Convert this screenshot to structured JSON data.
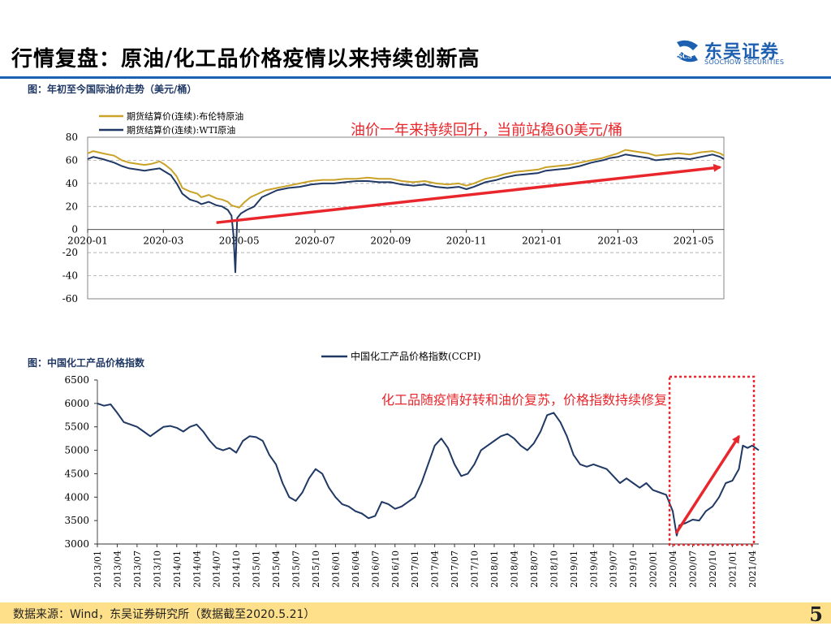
{
  "page": {
    "title": "行情复盘：原油/化工品价格疫情以来持续创新高",
    "logo_cn": "东吴证券",
    "logo_en": "SOOCHOW SECURITIES",
    "brand_color": "#1d5fb0",
    "footer_source": "数据来源：Wind，东吴证券研究所（数据截至2020.5.21）",
    "page_number": "5"
  },
  "chart_data": [
    {
      "type": "line",
      "heading": "图：年初至今国际油价走势（美元/桶）",
      "ylim": [
        -60,
        80
      ],
      "yticks": [
        80,
        60,
        40,
        20,
        0,
        -20,
        -40,
        -60
      ],
      "x_range": [
        "2020-01",
        "2021-05"
      ],
      "xticks": [
        "2020-01",
        "2020-03",
        "2020-05",
        "2020-07",
        "2020-09",
        "2020-11",
        "2021-01",
        "2021-03",
        "2021-05"
      ],
      "grid": true,
      "legend_position": "top-left",
      "annotation": "油价一年来持续回升，当前站稳60美元/桶",
      "annotation_color": "#e8262b",
      "trend_arrow": {
        "from": [
          3.4,
          6
        ],
        "to": [
          16.7,
          54
        ]
      },
      "series": [
        {
          "name": "期货结算价(连续):布伦特原油",
          "color": "#c9a227",
          "points": [
            [
              0,
              66
            ],
            [
              0.15,
              68
            ],
            [
              0.4,
              66
            ],
            [
              0.7,
              64
            ],
            [
              0.9,
              60
            ],
            [
              1.1,
              58
            ],
            [
              1.3,
              57
            ],
            [
              1.5,
              56
            ],
            [
              1.7,
              57
            ],
            [
              1.9,
              59
            ],
            [
              2.05,
              56
            ],
            [
              2.2,
              52
            ],
            [
              2.35,
              46
            ],
            [
              2.5,
              36
            ],
            [
              2.7,
              33
            ],
            [
              2.9,
              31
            ],
            [
              3.0,
              28
            ],
            [
              3.2,
              30
            ],
            [
              3.4,
              27
            ],
            [
              3.55,
              26
            ],
            [
              3.7,
              24
            ],
            [
              3.8,
              21
            ],
            [
              3.9,
              20
            ],
            [
              4.0,
              19
            ],
            [
              4.15,
              24
            ],
            [
              4.3,
              28
            ],
            [
              4.5,
              31
            ],
            [
              4.7,
              34
            ],
            [
              5.0,
              36
            ],
            [
              5.3,
              38
            ],
            [
              5.6,
              40
            ],
            [
              5.9,
              42
            ],
            [
              6.2,
              43
            ],
            [
              6.5,
              43
            ],
            [
              6.8,
              44
            ],
            [
              7.1,
              44
            ],
            [
              7.4,
              45
            ],
            [
              7.7,
              44
            ],
            [
              8.0,
              44
            ],
            [
              8.3,
              42
            ],
            [
              8.6,
              41
            ],
            [
              8.9,
              42
            ],
            [
              9.2,
              40
            ],
            [
              9.5,
              39
            ],
            [
              9.8,
              40
            ],
            [
              10.0,
              38
            ],
            [
              10.2,
              40
            ],
            [
              10.5,
              44
            ],
            [
              10.8,
              46
            ],
            [
              11.0,
              48
            ],
            [
              11.3,
              50
            ],
            [
              11.6,
              51
            ],
            [
              11.9,
              52
            ],
            [
              12.1,
              54
            ],
            [
              12.4,
              55
            ],
            [
              12.7,
              56
            ],
            [
              13.0,
              58
            ],
            [
              13.3,
              60
            ],
            [
              13.6,
              62
            ],
            [
              13.8,
              64
            ],
            [
              14.0,
              66
            ],
            [
              14.2,
              69
            ],
            [
              14.4,
              68
            ],
            [
              14.6,
              67
            ],
            [
              14.8,
              66
            ],
            [
              15.0,
              64
            ],
            [
              15.3,
              65
            ],
            [
              15.6,
              66
            ],
            [
              15.9,
              65
            ],
            [
              16.2,
              67
            ],
            [
              16.5,
              68
            ],
            [
              16.7,
              66
            ],
            [
              16.8,
              64
            ]
          ]
        },
        {
          "name": "期货结算价(连续):WTI原油",
          "color": "#1f3864",
          "points": [
            [
              0,
              61
            ],
            [
              0.15,
              63
            ],
            [
              0.4,
              61
            ],
            [
              0.7,
              58
            ],
            [
              0.9,
              55
            ],
            [
              1.1,
              53
            ],
            [
              1.3,
              52
            ],
            [
              1.5,
              51
            ],
            [
              1.7,
              52
            ],
            [
              1.9,
              53
            ],
            [
              2.05,
              50
            ],
            [
              2.2,
              47
            ],
            [
              2.35,
              40
            ],
            [
              2.5,
              31
            ],
            [
              2.7,
              26
            ],
            [
              2.9,
              24
            ],
            [
              3.0,
              22
            ],
            [
              3.2,
              24
            ],
            [
              3.4,
              21
            ],
            [
              3.55,
              20
            ],
            [
              3.7,
              17
            ],
            [
              3.8,
              12
            ],
            [
              3.85,
              -5
            ],
            [
              3.9,
              -37
            ],
            [
              3.95,
              10
            ],
            [
              4.05,
              14
            ],
            [
              4.2,
              17
            ],
            [
              4.4,
              20
            ],
            [
              4.6,
              28
            ],
            [
              4.8,
              31
            ],
            [
              5.0,
              34
            ],
            [
              5.3,
              36
            ],
            [
              5.6,
              37
            ],
            [
              5.9,
              39
            ],
            [
              6.2,
              40
            ],
            [
              6.5,
              40
            ],
            [
              6.8,
              41
            ],
            [
              7.1,
              42
            ],
            [
              7.4,
              42
            ],
            [
              7.7,
              41
            ],
            [
              8.0,
              41
            ],
            [
              8.3,
              39
            ],
            [
              8.6,
              38
            ],
            [
              8.9,
              39
            ],
            [
              9.2,
              37
            ],
            [
              9.5,
              36
            ],
            [
              9.8,
              37
            ],
            [
              10.0,
              35
            ],
            [
              10.2,
              37
            ],
            [
              10.5,
              41
            ],
            [
              10.8,
              43
            ],
            [
              11.0,
              45
            ],
            [
              11.3,
              47
            ],
            [
              11.6,
              48
            ],
            [
              11.9,
              49
            ],
            [
              12.1,
              51
            ],
            [
              12.4,
              52
            ],
            [
              12.7,
              53
            ],
            [
              13.0,
              55
            ],
            [
              13.3,
              58
            ],
            [
              13.6,
              60
            ],
            [
              13.8,
              62
            ],
            [
              14.0,
              63
            ],
            [
              14.2,
              65
            ],
            [
              14.4,
              64
            ],
            [
              14.6,
              63
            ],
            [
              14.8,
              62
            ],
            [
              15.0,
              60
            ],
            [
              15.3,
              61
            ],
            [
              15.6,
              62
            ],
            [
              15.9,
              61
            ],
            [
              16.2,
              63
            ],
            [
              16.5,
              65
            ],
            [
              16.7,
              63
            ],
            [
              16.8,
              61
            ]
          ]
        }
      ]
    },
    {
      "type": "line",
      "heading": "图：中国化工产品价格指数",
      "ylim": [
        3000,
        6500
      ],
      "yticks": [
        6500,
        6000,
        5500,
        5000,
        4500,
        4000,
        3500,
        3000
      ],
      "x_range": [
        "2013/01",
        "2021/05"
      ],
      "xticks": [
        "2013/01",
        "2013/04",
        "2013/07",
        "2013/10",
        "2014/01",
        "2014/04",
        "2014/07",
        "2014/10",
        "2015/01",
        "2015/04",
        "2015/07",
        "2015/10",
        "2016/01",
        "2016/04",
        "2016/07",
        "2016/10",
        "2017/01",
        "2017/04",
        "2017/07",
        "2017/10",
        "2018/01",
        "2018/04",
        "2018/07",
        "2018/10",
        "2019/01",
        "2019/04",
        "2019/07",
        "2019/10",
        "2020/01",
        "2020/04",
        "2020/07",
        "2020/10",
        "2021/01",
        "2021/04"
      ],
      "grid": false,
      "legend_position": "top-center",
      "annotation": "化工品随疫情好转和油价复苏，价格指数持续修复",
      "annotation_color": "#e8262b",
      "highlight_range": [
        "2020/04",
        "2021/05"
      ],
      "trend_arrow": {
        "from": [
          87.5,
          3230
        ],
        "to": [
          97,
          5300
        ]
      },
      "series": [
        {
          "name": "中国化工产品价格指数(CCPI)",
          "color": "#1f3864",
          "points": [
            [
              0,
              6000
            ],
            [
              1,
              5950
            ],
            [
              2,
              5980
            ],
            [
              3,
              5800
            ],
            [
              4,
              5600
            ],
            [
              5,
              5550
            ],
            [
              6,
              5500
            ],
            [
              7,
              5400
            ],
            [
              8,
              5300
            ],
            [
              9,
              5400
            ],
            [
              10,
              5500
            ],
            [
              11,
              5520
            ],
            [
              12,
              5480
            ],
            [
              13,
              5400
            ],
            [
              14,
              5500
            ],
            [
              15,
              5550
            ],
            [
              16,
              5400
            ],
            [
              17,
              5200
            ],
            [
              18,
              5050
            ],
            [
              19,
              5000
            ],
            [
              20,
              5050
            ],
            [
              21,
              4950
            ],
            [
              22,
              5200
            ],
            [
              23,
              5300
            ],
            [
              24,
              5280
            ],
            [
              25,
              5200
            ],
            [
              26,
              4900
            ],
            [
              27,
              4700
            ],
            [
              28,
              4300
            ],
            [
              29,
              4000
            ],
            [
              30,
              3920
            ],
            [
              31,
              4100
            ],
            [
              32,
              4400
            ],
            [
              33,
              4600
            ],
            [
              34,
              4500
            ],
            [
              35,
              4200
            ],
            [
              36,
              4000
            ],
            [
              37,
              3850
            ],
            [
              38,
              3800
            ],
            [
              39,
              3700
            ],
            [
              40,
              3650
            ],
            [
              41,
              3550
            ],
            [
              42,
              3600
            ],
            [
              43,
              3900
            ],
            [
              44,
              3850
            ],
            [
              45,
              3750
            ],
            [
              46,
              3800
            ],
            [
              47,
              3900
            ],
            [
              48,
              4000
            ],
            [
              49,
              4300
            ],
            [
              50,
              4700
            ],
            [
              51,
              5100
            ],
            [
              52,
              5250
            ],
            [
              53,
              5050
            ],
            [
              54,
              4700
            ],
            [
              55,
              4450
            ],
            [
              56,
              4500
            ],
            [
              57,
              4700
            ],
            [
              58,
              5000
            ],
            [
              59,
              5100
            ],
            [
              60,
              5200
            ],
            [
              61,
              5300
            ],
            [
              62,
              5350
            ],
            [
              63,
              5250
            ],
            [
              64,
              5100
            ],
            [
              65,
              5000
            ],
            [
              66,
              5150
            ],
            [
              67,
              5400
            ],
            [
              68,
              5750
            ],
            [
              69,
              5800
            ],
            [
              70,
              5600
            ],
            [
              71,
              5300
            ],
            [
              72,
              4900
            ],
            [
              73,
              4700
            ],
            [
              74,
              4650
            ],
            [
              75,
              4700
            ],
            [
              76,
              4650
            ],
            [
              77,
              4600
            ],
            [
              78,
              4450
            ],
            [
              79,
              4300
            ],
            [
              80,
              4400
            ],
            [
              81,
              4300
            ],
            [
              82,
              4200
            ],
            [
              83,
              4300
            ],
            [
              84,
              4150
            ],
            [
              85,
              4100
            ],
            [
              86,
              4050
            ],
            [
              87,
              3700
            ],
            [
              87.6,
              3180
            ],
            [
              88,
              3400
            ],
            [
              89,
              3450
            ],
            [
              90,
              3520
            ],
            [
              91,
              3500
            ],
            [
              92,
              3700
            ],
            [
              93,
              3800
            ],
            [
              94,
              4000
            ],
            [
              95,
              4300
            ],
            [
              96,
              4350
            ],
            [
              97,
              4600
            ],
            [
              97.6,
              5100
            ],
            [
              98.3,
              5050
            ],
            [
              99,
              5100
            ],
            [
              100,
              5000
            ]
          ]
        }
      ]
    }
  ]
}
